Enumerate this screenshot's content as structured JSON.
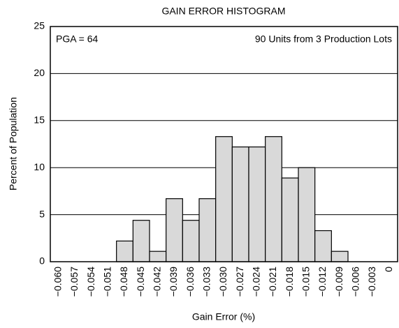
{
  "chart_data": {
    "type": "bar",
    "title": "GAIN ERROR HISTOGRAM",
    "xlabel": "Gain Error (%)",
    "ylabel": "Percent of Population",
    "annotations": [
      "PGA = 64",
      "90 Units from 3 Production Lots"
    ],
    "categories": [
      "−0.060",
      "−0.057",
      "−0.054",
      "−0.051",
      "−0.048",
      "−0.045",
      "−0.042",
      "−0.039",
      "−0.036",
      "−0.033",
      "−0.030",
      "−0.027",
      "−0.024",
      "−0.021",
      "−0.018",
      "−0.015",
      "−0.012",
      "−0.009",
      "−0.006",
      "−0.003",
      "0"
    ],
    "values": [
      0,
      0,
      0,
      0,
      2.2,
      4.4,
      1.1,
      6.7,
      4.4,
      6.7,
      13.3,
      12.2,
      12.2,
      13.3,
      8.9,
      10,
      3.3,
      1.1,
      0,
      0,
      0
    ],
    "color": "#d9d9d9",
    "ylim": [
      0,
      25
    ],
    "yticks": [
      0,
      5,
      10,
      15,
      20,
      25
    ],
    "grid": true
  }
}
